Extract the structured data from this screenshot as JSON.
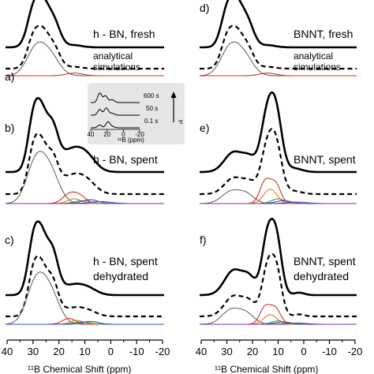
{
  "chart_data": {
    "type": "line",
    "x_unit": "ppm",
    "x_range": [
      40,
      -20
    ],
    "x_ticks": [
      40,
      30,
      20,
      10,
      0,
      -10,
      -20
    ],
    "x_tick_labels": [
      "40",
      "30",
      "20",
      "10",
      "0",
      "-10",
      "-20"
    ],
    "xlabel": "¹¹B Chemical Shift (ppm)",
    "colors": {
      "experimental": "#000000",
      "simulation": "#000000",
      "component_gray": "#666666",
      "component_red": "#d03020",
      "component_orange": "#f07020",
      "component_green": "#30a030",
      "component_blue": "#3050c0",
      "component_purple": "#8030b0",
      "inset_background": "#e4e6e8"
    },
    "panels": [
      {
        "id": "a",
        "label": "a)",
        "text": [
          "h - BN, fresh",
          "analytical",
          "simulations"
        ],
        "peaks": [
          {
            "c": 29,
            "w": 2.5,
            "a": 1.0
          },
          {
            "c": 25.5,
            "w": 2.0,
            "a": 0.55
          },
          {
            "c": 22,
            "w": 2.5,
            "a": 0.65
          },
          {
            "c": 14,
            "w": 3,
            "a": 0.05
          }
        ],
        "components": [
          {
            "color": "gray",
            "peaks": [
              {
                "c": 28.5,
                "w": 3.5,
                "a": 0.8
              },
              {
                "c": 23,
                "w": 3.5,
                "a": 0.55
              }
            ]
          },
          {
            "color": "red",
            "peaks": [
              {
                "c": 14,
                "w": 3,
                "a": 0.08
              }
            ]
          }
        ]
      },
      {
        "id": "b",
        "label": "b)",
        "text": [
          "h - BN, spent"
        ],
        "peaks": [
          {
            "c": 29,
            "w": 2.3,
            "a": 1.0
          },
          {
            "c": 26,
            "w": 1.8,
            "a": 0.45
          },
          {
            "c": 22.5,
            "w": 2.3,
            "a": 0.7
          },
          {
            "c": 15,
            "w": 4.5,
            "a": 0.35
          },
          {
            "c": 9,
            "w": 3.5,
            "a": 0.18
          }
        ],
        "components": [
          {
            "color": "gray",
            "peaks": [
              {
                "c": 28.5,
                "w": 3.5,
                "a": 0.85
              },
              {
                "c": 23,
                "w": 3.5,
                "a": 0.6
              }
            ]
          },
          {
            "color": "red",
            "peaks": [
              {
                "c": 16,
                "w": 2.5,
                "a": 0.18
              },
              {
                "c": 12,
                "w": 2.5,
                "a": 0.15
              }
            ]
          },
          {
            "color": "orange",
            "peaks": [
              {
                "c": 14,
                "w": 2.5,
                "a": 0.1
              }
            ]
          },
          {
            "color": "green",
            "peaks": [
              {
                "c": 11,
                "w": 3,
                "a": 0.06
              }
            ]
          },
          {
            "color": "blue",
            "peaks": [
              {
                "c": 8,
                "w": 3,
                "a": 0.08
              }
            ]
          },
          {
            "color": "purple",
            "peaks": [
              {
                "c": 4,
                "w": 4,
                "a": 0.04
              }
            ]
          }
        ]
      },
      {
        "id": "c",
        "label": "c)",
        "text": [
          "h - BN, spent",
          "dehydrated"
        ],
        "peaks": [
          {
            "c": 29,
            "w": 2.3,
            "a": 1.0
          },
          {
            "c": 26,
            "w": 1.8,
            "a": 0.45
          },
          {
            "c": 22.5,
            "w": 2.3,
            "a": 0.72
          },
          {
            "c": 15,
            "w": 4,
            "a": 0.15
          },
          {
            "c": 9,
            "w": 3.5,
            "a": 0.1
          }
        ],
        "components": [
          {
            "color": "gray",
            "peaks": [
              {
                "c": 28.5,
                "w": 3.5,
                "a": 0.85
              },
              {
                "c": 23,
                "w": 3.5,
                "a": 0.6
              }
            ]
          },
          {
            "color": "red",
            "peaks": [
              {
                "c": 16,
                "w": 2.5,
                "a": 0.12
              }
            ]
          },
          {
            "color": "orange",
            "peaks": [
              {
                "c": 13,
                "w": 2.5,
                "a": 0.08
              }
            ]
          },
          {
            "color": "green",
            "peaks": [
              {
                "c": 11,
                "w": 3,
                "a": 0.05
              }
            ]
          },
          {
            "color": "blue",
            "peaks": [
              {
                "c": 8,
                "w": 3,
                "a": 0.06
              }
            ]
          }
        ]
      },
      {
        "id": "d",
        "label": "d)",
        "text": [
          "BNNT, fresh",
          "analytical",
          "simulations"
        ],
        "peaks": [
          {
            "c": 29,
            "w": 2.5,
            "a": 1.0
          },
          {
            "c": 25.5,
            "w": 2.0,
            "a": 0.55
          },
          {
            "c": 22,
            "w": 2.5,
            "a": 0.65
          },
          {
            "c": 14,
            "w": 3,
            "a": 0.05
          }
        ],
        "components": [
          {
            "color": "gray",
            "peaks": [
              {
                "c": 28.5,
                "w": 3.5,
                "a": 0.8
              },
              {
                "c": 23,
                "w": 3.5,
                "a": 0.55
              }
            ]
          },
          {
            "color": "red",
            "peaks": [
              {
                "c": 14,
                "w": 3,
                "a": 0.08
              }
            ]
          }
        ]
      },
      {
        "id": "e",
        "label": "e)",
        "text": [
          "BNNT, spent"
        ],
        "peaks": [
          {
            "c": 27,
            "w": 3.5,
            "a": 0.32
          },
          {
            "c": 21,
            "w": 2.5,
            "a": 0.2
          },
          {
            "c": 14,
            "w": 2.5,
            "a": 0.95
          },
          {
            "c": 10.5,
            "w": 2.2,
            "a": 0.75
          },
          {
            "c": 4,
            "w": 3,
            "a": 0.06
          }
        ],
        "components": [
          {
            "color": "gray",
            "peaks": [
              {
                "c": 28,
                "w": 3.5,
                "a": 0.25
              },
              {
                "c": 22,
                "w": 3,
                "a": 0.18
              }
            ]
          },
          {
            "color": "red",
            "peaks": [
              {
                "c": 15,
                "w": 2,
                "a": 0.45
              },
              {
                "c": 11,
                "w": 2,
                "a": 0.4
              }
            ]
          },
          {
            "color": "orange",
            "peaks": [
              {
                "c": 13,
                "w": 2.5,
                "a": 0.3
              }
            ]
          },
          {
            "color": "green",
            "peaks": [
              {
                "c": 10,
                "w": 2.5,
                "a": 0.1
              }
            ]
          },
          {
            "color": "blue",
            "peaks": [
              {
                "c": 8,
                "w": 3,
                "a": 0.06
              }
            ]
          },
          {
            "color": "purple",
            "peaks": [
              {
                "c": 3,
                "w": 4,
                "a": 0.03
              }
            ]
          }
        ]
      },
      {
        "id": "f",
        "label": "f)",
        "text": [
          "BNNT, spent",
          "dehydrated"
        ],
        "peaks": [
          {
            "c": 27,
            "w": 3.5,
            "a": 0.4
          },
          {
            "c": 21,
            "w": 2.5,
            "a": 0.25
          },
          {
            "c": 14,
            "w": 2.2,
            "a": 0.95
          },
          {
            "c": 10.5,
            "w": 2.0,
            "a": 0.8
          },
          {
            "c": 2,
            "w": 2,
            "a": 0.04
          }
        ],
        "components": [
          {
            "color": "gray",
            "peaks": [
              {
                "c": 28,
                "w": 3.5,
                "a": 0.3
              },
              {
                "c": 22,
                "w": 3,
                "a": 0.2
              }
            ]
          },
          {
            "color": "red",
            "peaks": [
              {
                "c": 15,
                "w": 2,
                "a": 0.35
              },
              {
                "c": 11,
                "w": 2,
                "a": 0.32
              }
            ]
          },
          {
            "color": "orange",
            "peaks": [
              {
                "c": 13,
                "w": 2.5,
                "a": 0.2
              }
            ]
          },
          {
            "color": "green",
            "peaks": [
              {
                "c": 10,
                "w": 2.5,
                "a": 0.07
              }
            ]
          },
          {
            "color": "blue",
            "peaks": [
              {
                "c": 8,
                "w": 3,
                "a": 0.05
              }
            ]
          },
          {
            "color": "purple",
            "peaks": [
              {
                "c": 3,
                "w": 4,
                "a": 0.025
              }
            ]
          }
        ]
      }
    ],
    "inset": {
      "x_range": [
        40,
        -20
      ],
      "x_ticks": [
        40,
        20,
        0,
        -20
      ],
      "x_tick_labels": [
        "40",
        "20",
        "0",
        "-20"
      ],
      "xlabel": "¹¹B (ppm)",
      "arrow_label": "tᵈ",
      "series": [
        {
          "name": "600 s",
          "peaks": [
            {
              "c": 29,
              "w": 2.5,
              "a": 1.0
            },
            {
              "c": 22,
              "w": 2.5,
              "a": 0.7
            },
            {
              "c": 14,
              "w": 3,
              "a": 0.3
            }
          ]
        },
        {
          "name": "50 s",
          "peaks": [
            {
              "c": 29,
              "w": 2.5,
              "a": 0.6
            },
            {
              "c": 21,
              "w": 2.5,
              "a": 0.75
            },
            {
              "c": 14,
              "w": 3,
              "a": 0.2
            }
          ]
        },
        {
          "name": "0.1 s",
          "peaks": [
            {
              "c": 29,
              "w": 2.5,
              "a": 0.3
            },
            {
              "c": 19,
              "w": 2.5,
              "a": 0.6
            },
            {
              "c": 14,
              "w": 3,
              "a": 0.15
            }
          ]
        }
      ]
    }
  }
}
